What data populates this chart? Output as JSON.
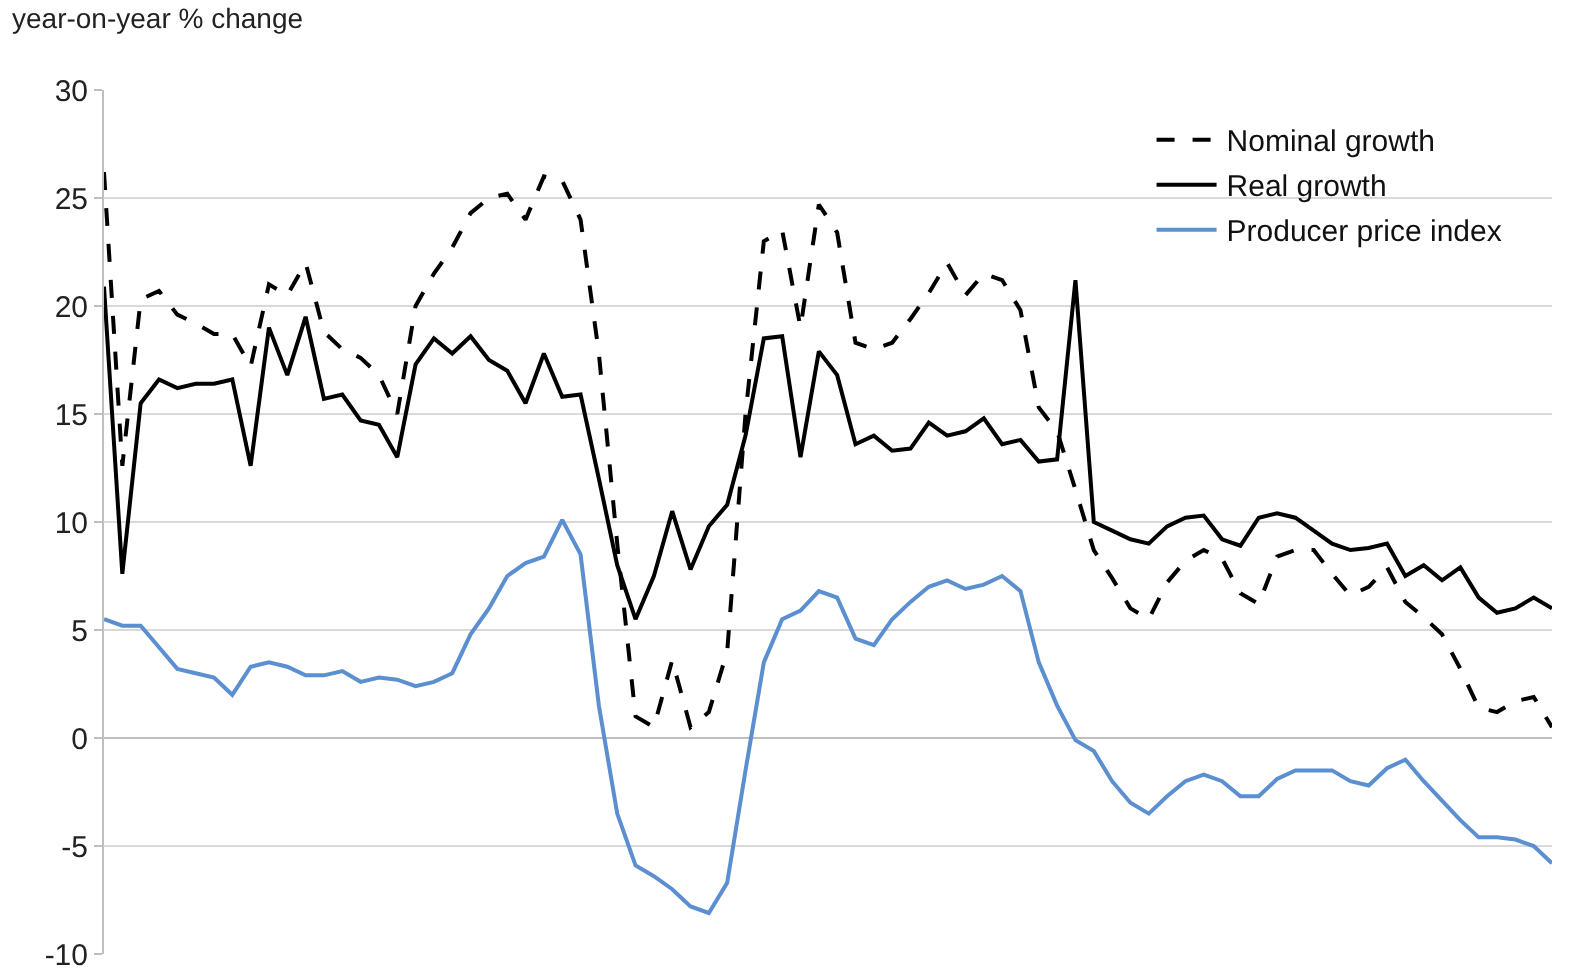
{
  "chart_data": {
    "type": "line",
    "ylabel": "year-on-year % change",
    "categories": [
      null,
      null,
      null,
      null,
      null,
      null,
      null,
      null,
      null,
      null,
      null,
      null,
      null,
      null,
      null,
      null,
      null,
      null,
      null,
      null,
      null,
      null,
      null,
      null,
      null,
      null,
      null,
      null,
      null,
      null,
      null,
      null,
      null,
      null,
      null,
      null,
      null,
      null,
      null,
      null,
      null,
      null,
      null,
      null,
      null,
      null,
      null,
      null,
      null,
      null,
      null,
      null,
      null,
      null,
      null,
      null,
      null,
      null,
      null,
      null,
      null,
      null,
      null,
      null,
      null,
      null,
      null,
      null,
      null,
      null,
      null,
      null,
      null,
      null,
      null,
      null,
      null,
      null,
      null,
      null
    ],
    "series": [
      {
        "name": "Nominal growth",
        "color": "#000000",
        "line_style": "dashed",
        "values": [
          26.2,
          12.6,
          20.3,
          20.7,
          19.6,
          19.2,
          18.7,
          18.7,
          17.2,
          21.0,
          20.5,
          22.0,
          18.8,
          18.0,
          17.6,
          16.8,
          15.0,
          20.0,
          21.5,
          22.7,
          24.3,
          25.0,
          25.2,
          24.0,
          26.0,
          25.8,
          24.0,
          17.8,
          9.0,
          1.0,
          0.5,
          3.6,
          0.5,
          1.2,
          4.0,
          15.0,
          23.0,
          23.5,
          19.0,
          24.7,
          23.4,
          18.3,
          18.0,
          18.3,
          19.4,
          20.6,
          22.0,
          20.5,
          21.5,
          21.2,
          19.8,
          15.3,
          14.2,
          11.5,
          8.7,
          7.4,
          6.0,
          5.5,
          7.2,
          8.2,
          8.7,
          8.3,
          6.7,
          6.2,
          8.4,
          8.7,
          8.7,
          7.6,
          6.6,
          7.0,
          7.9,
          6.3,
          5.6,
          4.8,
          3.2,
          1.4,
          1.2,
          1.7,
          1.9,
          0.5
        ]
      },
      {
        "name": "Real growth",
        "color": "#000000",
        "line_style": "solid",
        "values": [
          20.9,
          7.6,
          15.5,
          16.6,
          16.2,
          16.4,
          16.4,
          16.6,
          12.6,
          19.0,
          16.8,
          19.5,
          15.7,
          15.9,
          14.7,
          14.5,
          13.0,
          17.3,
          18.5,
          17.8,
          18.6,
          17.5,
          17.0,
          15.5,
          17.8,
          15.8,
          15.9,
          12.0,
          8.0,
          5.5,
          7.5,
          10.5,
          7.8,
          9.8,
          10.8,
          14.0,
          18.5,
          18.6,
          13.0,
          17.9,
          16.8,
          13.6,
          14.0,
          13.3,
          13.4,
          14.6,
          14.0,
          14.2,
          14.8,
          13.6,
          13.8,
          12.8,
          12.9,
          21.2,
          10.0,
          9.6,
          9.2,
          9.0,
          9.8,
          10.2,
          10.3,
          9.2,
          8.9,
          10.2,
          10.4,
          10.2,
          9.6,
          9.0,
          8.7,
          8.8,
          9.0,
          7.5,
          8.0,
          7.3,
          7.9,
          6.5,
          5.8,
          6.0,
          6.5,
          6.0
        ]
      },
      {
        "name": "Producer price index",
        "color": "#5b8fd0",
        "line_style": "solid",
        "values": [
          5.5,
          5.2,
          5.2,
          4.2,
          3.2,
          3.0,
          2.8,
          2.0,
          3.3,
          3.5,
          3.3,
          2.9,
          2.9,
          3.1,
          2.6,
          2.8,
          2.7,
          2.4,
          2.6,
          3.0,
          4.8,
          6.0,
          7.5,
          8.1,
          8.4,
          10.1,
          8.5,
          1.5,
          -3.5,
          -5.9,
          -6.4,
          -7.0,
          -7.8,
          -8.1,
          -6.7,
          -1.5,
          3.5,
          5.5,
          5.9,
          6.8,
          6.5,
          4.6,
          4.3,
          5.5,
          6.3,
          7.0,
          7.3,
          6.9,
          7.1,
          7.5,
          6.8,
          3.5,
          1.5,
          -0.1,
          -0.6,
          -2.0,
          -3.0,
          -3.5,
          -2.7,
          -2.0,
          -1.7,
          -2.0,
          -2.7,
          -2.7,
          -1.9,
          -1.5,
          -1.5,
          -1.5,
          -2.0,
          -2.2,
          -1.4,
          -1.0,
          -2.0,
          -2.9,
          -3.8,
          -4.6,
          -4.6,
          -4.7,
          -5.0,
          -5.8
        ]
      }
    ],
    "ylim": [
      -10,
      30
    ],
    "yticks": [
      -10,
      -5,
      0,
      5,
      10,
      15,
      20,
      25,
      30
    ],
    "grid": "y",
    "legend": "top right"
  }
}
